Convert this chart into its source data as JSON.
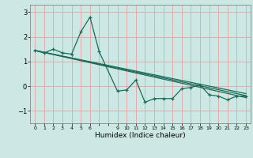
{
  "title": "",
  "xlabel": "Humidex (Indice chaleur)",
  "ylabel": "",
  "bg_color": "#cce8e4",
  "grid_color": "#e8a0a0",
  "line_color": "#1a6b5a",
  "xlim": [
    -0.5,
    23.5
  ],
  "ylim": [
    -1.5,
    3.3
  ],
  "yticks": [
    -1,
    0,
    1,
    2,
    3
  ],
  "xtick_labels": [
    "0",
    "1",
    "2",
    "3",
    "4",
    "5",
    "6",
    "",
    "",
    "9",
    "10",
    "11",
    "12",
    "13",
    "14",
    "15",
    "16",
    "17",
    "18",
    "19",
    "20",
    "21",
    "22",
    "23"
  ],
  "xtick_positions": [
    0,
    1,
    2,
    3,
    4,
    5,
    6,
    7,
    8,
    9,
    10,
    11,
    12,
    13,
    14,
    15,
    16,
    17,
    18,
    19,
    20,
    21,
    22,
    23
  ],
  "line1_x": [
    0,
    1,
    2,
    3,
    4,
    5,
    6,
    7,
    9,
    10,
    11,
    12,
    13,
    14,
    15,
    16,
    17,
    18,
    19,
    20,
    21,
    22,
    23
  ],
  "line1_y": [
    1.45,
    1.35,
    1.5,
    1.35,
    1.3,
    2.2,
    2.8,
    1.4,
    -0.2,
    -0.15,
    0.25,
    -0.65,
    -0.5,
    -0.5,
    -0.5,
    -0.1,
    -0.05,
    0.05,
    -0.35,
    -0.4,
    -0.55,
    -0.4,
    -0.4
  ],
  "line2_x": [
    0,
    23
  ],
  "line2_y": [
    1.45,
    -0.38
  ],
  "line3_x": [
    0,
    23
  ],
  "line3_y": [
    1.45,
    -0.3
  ],
  "line4_x": [
    0,
    23
  ],
  "line4_y": [
    1.45,
    -0.46
  ]
}
